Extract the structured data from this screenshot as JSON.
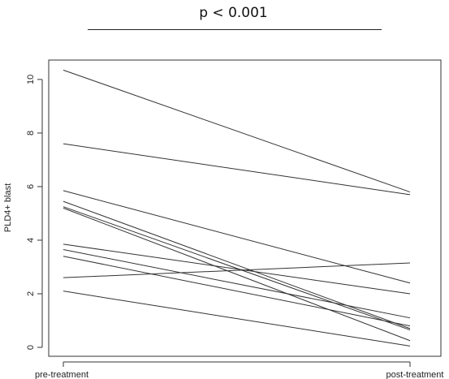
{
  "chart_data": {
    "type": "line",
    "title": "p < 0.001",
    "xlabel": "",
    "ylabel": "PLD4+ blast",
    "categories": [
      "pre-treatment",
      "post-treatment"
    ],
    "ylim": [
      0,
      10.5
    ],
    "yticks": [
      0,
      2,
      4,
      6,
      8,
      10
    ],
    "grid": false,
    "series": [
      {
        "values": [
          10.35,
          5.8
        ]
      },
      {
        "values": [
          7.6,
          5.7
        ]
      },
      {
        "values": [
          5.85,
          2.4
        ]
      },
      {
        "values": [
          5.45,
          0.7
        ]
      },
      {
        "values": [
          5.25,
          0.65
        ]
      },
      {
        "values": [
          5.2,
          0.25
        ]
      },
      {
        "values": [
          3.85,
          2.0
        ]
      },
      {
        "values": [
          3.65,
          1.1
        ]
      },
      {
        "values": [
          3.4,
          0.8
        ]
      },
      {
        "values": [
          2.6,
          3.15
        ]
      },
      {
        "values": [
          2.1,
          0.05
        ]
      }
    ],
    "line_color": "#333333"
  }
}
